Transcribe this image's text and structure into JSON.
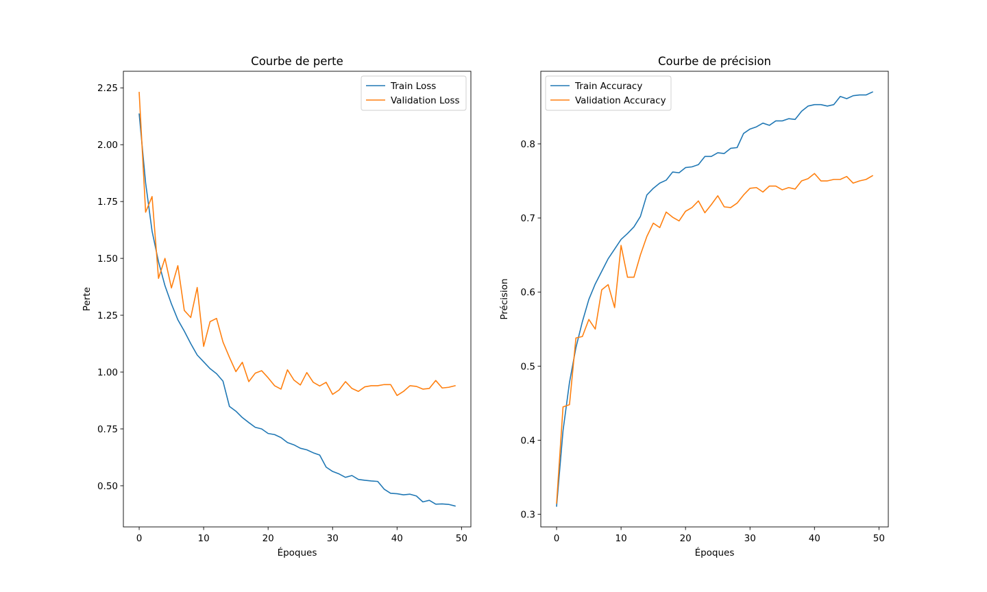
{
  "chart_data": [
    {
      "type": "line",
      "title": "Courbe de perte",
      "xlabel": "Époques",
      "ylabel": "Perte",
      "xlim": [
        -2.45,
        51.45
      ],
      "ylim": [
        0.319,
        2.323
      ],
      "xticks": [
        0,
        10,
        20,
        30,
        40,
        50
      ],
      "xtick_labels": [
        "0",
        "10",
        "20",
        "30",
        "40",
        "50"
      ],
      "yticks": [
        0.5,
        0.75,
        1.0,
        1.25,
        1.5,
        1.75,
        2.0,
        2.25
      ],
      "ytick_labels": [
        "0.50",
        "0.75",
        "1.00",
        "1.25",
        "1.50",
        "1.75",
        "2.00",
        "2.25"
      ],
      "grid": false,
      "legend_position": "upper right",
      "x": [
        0,
        1,
        2,
        3,
        4,
        5,
        6,
        7,
        8,
        9,
        10,
        11,
        12,
        13,
        14,
        15,
        16,
        17,
        18,
        19,
        20,
        21,
        22,
        23,
        24,
        25,
        26,
        27,
        28,
        29,
        30,
        31,
        32,
        33,
        34,
        35,
        36,
        37,
        38,
        39,
        40,
        41,
        42,
        43,
        44,
        45,
        46,
        47,
        48,
        49
      ],
      "series": [
        {
          "name": "Train Loss",
          "color": "#1f77b4",
          "values": [
            2.135,
            1.832,
            1.62,
            1.485,
            1.38,
            1.3,
            1.23,
            1.18,
            1.125,
            1.075,
            1.045,
            1.015,
            0.993,
            0.96,
            0.849,
            0.828,
            0.8,
            0.778,
            0.757,
            0.75,
            0.73,
            0.725,
            0.712,
            0.69,
            0.68,
            0.665,
            0.658,
            0.645,
            0.635,
            0.582,
            0.563,
            0.552,
            0.537,
            0.545,
            0.528,
            0.524,
            0.521,
            0.519,
            0.485,
            0.467,
            0.465,
            0.46,
            0.463,
            0.455,
            0.429,
            0.436,
            0.419,
            0.42,
            0.418,
            0.411
          ]
        },
        {
          "name": "Validation Loss",
          "color": "#ff7f0e",
          "values": [
            2.23,
            1.703,
            1.772,
            1.412,
            1.5,
            1.37,
            1.468,
            1.271,
            1.24,
            1.372,
            1.113,
            1.222,
            1.236,
            1.132,
            1.065,
            1.002,
            1.043,
            0.958,
            0.995,
            1.006,
            0.975,
            0.94,
            0.925,
            1.01,
            0.965,
            0.943,
            0.998,
            0.955,
            0.939,
            0.955,
            0.902,
            0.921,
            0.958,
            0.928,
            0.915,
            0.935,
            0.94,
            0.94,
            0.945,
            0.945,
            0.897,
            0.915,
            0.94,
            0.937,
            0.925,
            0.928,
            0.963,
            0.93,
            0.933,
            0.94
          ]
        }
      ]
    },
    {
      "type": "line",
      "title": "Courbe de précision",
      "xlabel": "Époques",
      "ylabel": "Précision",
      "xlim": [
        -2.45,
        51.45
      ],
      "ylim": [
        0.283,
        0.898
      ],
      "xticks": [
        0,
        10,
        20,
        30,
        40,
        50
      ],
      "xtick_labels": [
        "0",
        "10",
        "20",
        "30",
        "40",
        "50"
      ],
      "yticks": [
        0.3,
        0.4,
        0.5,
        0.6,
        0.7,
        0.8
      ],
      "ytick_labels": [
        "0.3",
        "0.4",
        "0.5",
        "0.6",
        "0.7",
        "0.8"
      ],
      "grid": false,
      "legend_position": "upper left",
      "x": [
        0,
        1,
        2,
        3,
        4,
        5,
        6,
        7,
        8,
        9,
        10,
        11,
        12,
        13,
        14,
        15,
        16,
        17,
        18,
        19,
        20,
        21,
        22,
        23,
        24,
        25,
        26,
        27,
        28,
        29,
        30,
        31,
        32,
        33,
        34,
        35,
        36,
        37,
        38,
        39,
        40,
        41,
        42,
        43,
        44,
        45,
        46,
        47,
        48,
        49
      ],
      "series": [
        {
          "name": "Train Accuracy",
          "color": "#1f77b4",
          "values": [
            0.311,
            0.413,
            0.478,
            0.525,
            0.56,
            0.59,
            0.611,
            0.628,
            0.645,
            0.658,
            0.671,
            0.679,
            0.688,
            0.702,
            0.731,
            0.74,
            0.747,
            0.751,
            0.762,
            0.761,
            0.768,
            0.769,
            0.772,
            0.783,
            0.783,
            0.788,
            0.787,
            0.794,
            0.795,
            0.814,
            0.82,
            0.823,
            0.828,
            0.825,
            0.831,
            0.831,
            0.834,
            0.833,
            0.844,
            0.851,
            0.853,
            0.853,
            0.851,
            0.853,
            0.864,
            0.861,
            0.865,
            0.866,
            0.866,
            0.87
          ]
        },
        {
          "name": "Validation Accuracy",
          "color": "#ff7f0e",
          "values": [
            0.315,
            0.445,
            0.448,
            0.538,
            0.54,
            0.563,
            0.55,
            0.603,
            0.61,
            0.579,
            0.663,
            0.62,
            0.62,
            0.65,
            0.675,
            0.693,
            0.687,
            0.708,
            0.701,
            0.696,
            0.709,
            0.714,
            0.723,
            0.707,
            0.718,
            0.73,
            0.715,
            0.714,
            0.72,
            0.731,
            0.74,
            0.741,
            0.735,
            0.743,
            0.743,
            0.738,
            0.741,
            0.739,
            0.75,
            0.753,
            0.76,
            0.75,
            0.75,
            0.752,
            0.752,
            0.756,
            0.747,
            0.75,
            0.752,
            0.757
          ]
        }
      ]
    }
  ]
}
